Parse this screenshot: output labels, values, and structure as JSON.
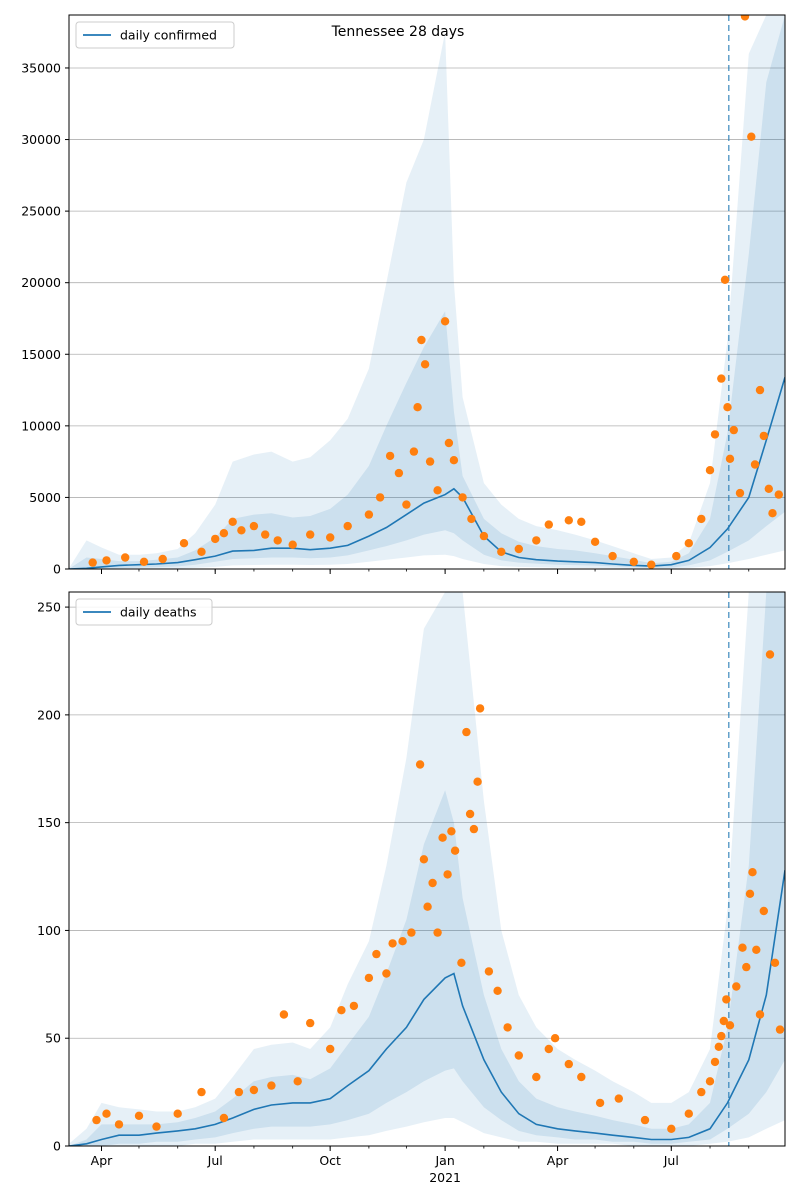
{
  "figure_title": "Tennessee 28 days",
  "colors": {
    "line": "#1f77b4",
    "points": "#ff7f0e",
    "band": "#1f77b4",
    "grid": "#b0b0b0"
  },
  "chart_data": [
    {
      "id": "confirmed",
      "type": "line",
      "legend": "daily confirmed",
      "legend_position": "top-left",
      "grid": "horizontal",
      "ylim": [
        0,
        38700
      ],
      "y_ticks": [
        0,
        5000,
        10000,
        15000,
        20000,
        25000,
        30000,
        35000
      ],
      "x_range": [
        "2020-03-06",
        "2021-09-30"
      ],
      "x_tick_labels": [],
      "forecast_start": "2021-08-16",
      "series": [
        {
          "name": "daily confirmed",
          "x": [
            "2020-03-06",
            "2020-03-20",
            "2020-04-01",
            "2020-04-15",
            "2020-05-01",
            "2020-05-15",
            "2020-06-01",
            "2020-06-15",
            "2020-07-01",
            "2020-07-15",
            "2020-08-01",
            "2020-08-15",
            "2020-09-01",
            "2020-09-15",
            "2020-10-01",
            "2020-10-15",
            "2020-11-01",
            "2020-11-15",
            "2020-12-01",
            "2020-12-15",
            "2021-01-01",
            "2021-01-08",
            "2021-01-15",
            "2021-02-01",
            "2021-02-15",
            "2021-03-01",
            "2021-03-15",
            "2021-04-01",
            "2021-04-15",
            "2021-05-01",
            "2021-05-15",
            "2021-06-01",
            "2021-06-15",
            "2021-07-01",
            "2021-07-15",
            "2021-08-01",
            "2021-08-15",
            "2021-09-01",
            "2021-09-15",
            "2021-09-30"
          ],
          "y": [
            0,
            50,
            150,
            250,
            300,
            350,
            450,
            650,
            900,
            1250,
            1300,
            1450,
            1450,
            1350,
            1450,
            1650,
            2300,
            2900,
            3800,
            4600,
            5200,
            5600,
            5000,
            2300,
            1200,
            800,
            650,
            550,
            500,
            450,
            350,
            250,
            200,
            300,
            600,
            1500,
            2800,
            5000,
            9000,
            13400
          ]
        }
      ],
      "band_upper_outer": [
        50,
        2000,
        1500,
        1000,
        1000,
        1100,
        1400,
        2500,
        4500,
        7500,
        8000,
        8200,
        7500,
        7800,
        9000,
        10500,
        14000,
        20000,
        27000,
        30000,
        37500,
        20000,
        12000,
        6000,
        4500,
        3500,
        3000,
        2700,
        2400,
        2000,
        1600,
        1100,
        700,
        800,
        1800,
        6000,
        16000,
        36000,
        38700,
        38700
      ],
      "band_upper_mid": [
        20,
        800,
        700,
        550,
        550,
        650,
        800,
        1300,
        2200,
        3500,
        3800,
        3900,
        3600,
        3700,
        4200,
        5200,
        7200,
        10000,
        13000,
        15500,
        18000,
        11000,
        6500,
        3500,
        2500,
        1900,
        1600,
        1400,
        1300,
        1100,
        900,
        650,
        400,
        500,
        1100,
        3500,
        9500,
        22000,
        34000,
        38700
      ],
      "band_lower_mid": [
        0,
        0,
        0,
        50,
        100,
        120,
        180,
        300,
        500,
        700,
        750,
        800,
        800,
        750,
        800,
        950,
        1300,
        1600,
        2000,
        2400,
        2700,
        2500,
        2000,
        1000,
        600,
        450,
        380,
        300,
        270,
        240,
        180,
        120,
        80,
        100,
        250,
        600,
        1200,
        2000,
        3000,
        4000
      ],
      "band_lower_outer": [
        0,
        0,
        0,
        0,
        0,
        0,
        30,
        80,
        150,
        250,
        280,
        300,
        300,
        280,
        300,
        350,
        500,
        650,
        800,
        950,
        1000,
        900,
        700,
        350,
        200,
        150,
        120,
        100,
        80,
        70,
        50,
        30,
        20,
        30,
        80,
        200,
        400,
        700,
        1000,
        1300
      ],
      "observations": [
        {
          "x": "2020-03-25",
          "y": 450
        },
        {
          "x": "2020-04-05",
          "y": 600
        },
        {
          "x": "2020-04-20",
          "y": 800
        },
        {
          "x": "2020-05-05",
          "y": 500
        },
        {
          "x": "2020-05-20",
          "y": 700
        },
        {
          "x": "2020-06-06",
          "y": 1800
        },
        {
          "x": "2020-06-20",
          "y": 1200
        },
        {
          "x": "2020-07-01",
          "y": 2100
        },
        {
          "x": "2020-07-08",
          "y": 2500
        },
        {
          "x": "2020-07-15",
          "y": 3300
        },
        {
          "x": "2020-07-22",
          "y": 2700
        },
        {
          "x": "2020-08-01",
          "y": 3000
        },
        {
          "x": "2020-08-10",
          "y": 2400
        },
        {
          "x": "2020-08-20",
          "y": 2000
        },
        {
          "x": "2020-09-01",
          "y": 1700
        },
        {
          "x": "2020-09-15",
          "y": 2400
        },
        {
          "x": "2020-10-01",
          "y": 2200
        },
        {
          "x": "2020-10-15",
          "y": 3000
        },
        {
          "x": "2020-11-01",
          "y": 3800
        },
        {
          "x": "2020-11-10",
          "y": 5000
        },
        {
          "x": "2020-11-18",
          "y": 7900
        },
        {
          "x": "2020-11-25",
          "y": 6700
        },
        {
          "x": "2020-12-01",
          "y": 4500
        },
        {
          "x": "2020-12-07",
          "y": 8200
        },
        {
          "x": "2020-12-10",
          "y": 11300
        },
        {
          "x": "2020-12-13",
          "y": 16000
        },
        {
          "x": "2020-12-16",
          "y": 14300
        },
        {
          "x": "2020-12-20",
          "y": 7500
        },
        {
          "x": "2020-12-26",
          "y": 5500
        },
        {
          "x": "2021-01-01",
          "y": 17300
        },
        {
          "x": "2021-01-04",
          "y": 8800
        },
        {
          "x": "2021-01-08",
          "y": 7600
        },
        {
          "x": "2021-01-15",
          "y": 5000
        },
        {
          "x": "2021-01-22",
          "y": 3500
        },
        {
          "x": "2021-02-01",
          "y": 2300
        },
        {
          "x": "2021-02-15",
          "y": 1200
        },
        {
          "x": "2021-03-01",
          "y": 1400
        },
        {
          "x": "2021-03-15",
          "y": 2000
        },
        {
          "x": "2021-03-25",
          "y": 3100
        },
        {
          "x": "2021-04-10",
          "y": 3400
        },
        {
          "x": "2021-04-20",
          "y": 3300
        },
        {
          "x": "2021-05-01",
          "y": 1900
        },
        {
          "x": "2021-05-15",
          "y": 900
        },
        {
          "x": "2021-06-01",
          "y": 500
        },
        {
          "x": "2021-06-15",
          "y": 300
        },
        {
          "x": "2021-07-05",
          "y": 900
        },
        {
          "x": "2021-07-15",
          "y": 1800
        },
        {
          "x": "2021-07-25",
          "y": 3500
        },
        {
          "x": "2021-08-01",
          "y": 6900
        },
        {
          "x": "2021-08-05",
          "y": 9400
        },
        {
          "x": "2021-08-10",
          "y": 13300
        },
        {
          "x": "2021-08-13",
          "y": 20200
        },
        {
          "x": "2021-08-15",
          "y": 11300
        },
        {
          "x": "2021-08-17",
          "y": 7700
        },
        {
          "x": "2021-08-20",
          "y": 9700
        },
        {
          "x": "2021-08-25",
          "y": 5300
        },
        {
          "x": "2021-08-29",
          "y": 38600
        },
        {
          "x": "2021-09-03",
          "y": 30200
        },
        {
          "x": "2021-09-06",
          "y": 7300
        },
        {
          "x": "2021-09-10",
          "y": 12500
        },
        {
          "x": "2021-09-13",
          "y": 9300
        },
        {
          "x": "2021-09-17",
          "y": 5600
        },
        {
          "x": "2021-09-20",
          "y": 3900
        },
        {
          "x": "2021-09-25",
          "y": 5200
        }
      ]
    },
    {
      "id": "deaths",
      "type": "line",
      "legend": "daily deaths",
      "legend_position": "top-left",
      "grid": "horizontal",
      "ylim": [
        0,
        257
      ],
      "y_ticks": [
        0,
        50,
        100,
        150,
        200,
        250
      ],
      "x_range": [
        "2020-03-06",
        "2021-09-30"
      ],
      "x_tick_labels": [
        {
          "x": "2020-04-01",
          "label": "Apr"
        },
        {
          "x": "2020-07-01",
          "label": "Jul"
        },
        {
          "x": "2020-10-01",
          "label": "Oct"
        },
        {
          "x": "2021-01-01",
          "label": "Jan",
          "sublabel": "2021"
        },
        {
          "x": "2021-04-01",
          "label": "Apr"
        },
        {
          "x": "2021-07-01",
          "label": "Jul"
        }
      ],
      "forecast_start": "2021-08-16",
      "series": [
        {
          "name": "daily deaths",
          "x": [
            "2020-03-06",
            "2020-03-20",
            "2020-04-01",
            "2020-04-15",
            "2020-05-01",
            "2020-05-15",
            "2020-06-01",
            "2020-06-15",
            "2020-07-01",
            "2020-07-15",
            "2020-08-01",
            "2020-08-15",
            "2020-09-01",
            "2020-09-15",
            "2020-10-01",
            "2020-10-15",
            "2020-11-01",
            "2020-11-15",
            "2020-12-01",
            "2020-12-15",
            "2021-01-01",
            "2021-01-08",
            "2021-01-15",
            "2021-02-01",
            "2021-02-15",
            "2021-03-01",
            "2021-03-15",
            "2021-04-01",
            "2021-04-15",
            "2021-05-01",
            "2021-05-15",
            "2021-06-01",
            "2021-06-15",
            "2021-07-01",
            "2021-07-15",
            "2021-08-01",
            "2021-08-15",
            "2021-09-01",
            "2021-09-15",
            "2021-09-30"
          ],
          "y": [
            0,
            1,
            3,
            5,
            5,
            6,
            7,
            8,
            10,
            13,
            17,
            19,
            20,
            20,
            22,
            28,
            35,
            45,
            55,
            68,
            78,
            80,
            65,
            40,
            25,
            15,
            10,
            8,
            7,
            6,
            5,
            4,
            3,
            3,
            4,
            8,
            20,
            40,
            70,
            128
          ]
        }
      ],
      "band_upper_outer": [
        1,
        8,
        20,
        18,
        17,
        16,
        16,
        18,
        22,
        32,
        45,
        47,
        48,
        45,
        55,
        75,
        95,
        130,
        180,
        240,
        257,
        257,
        257,
        160,
        100,
        70,
        55,
        45,
        40,
        35,
        30,
        25,
        20,
        20,
        25,
        45,
        110,
        257,
        257,
        257
      ],
      "band_upper_mid": [
        0,
        3,
        10,
        10,
        10,
        10,
        11,
        13,
        16,
        22,
        30,
        32,
        33,
        31,
        36,
        47,
        60,
        80,
        105,
        140,
        165,
        150,
        115,
        70,
        45,
        30,
        22,
        18,
        16,
        14,
        12,
        10,
        8,
        8,
        10,
        20,
        55,
        130,
        257,
        257
      ],
      "band_lower_mid": [
        0,
        0,
        0,
        1,
        1,
        2,
        2,
        3,
        4,
        6,
        8,
        9,
        9,
        9,
        10,
        12,
        15,
        20,
        25,
        30,
        35,
        36,
        30,
        18,
        12,
        7,
        5,
        4,
        3,
        3,
        2,
        2,
        1,
        1,
        2,
        3,
        8,
        15,
        25,
        40
      ],
      "band_lower_outer": [
        0,
        0,
        0,
        0,
        0,
        0,
        0,
        1,
        1,
        2,
        3,
        3,
        3,
        3,
        3,
        4,
        5,
        7,
        9,
        11,
        13,
        13,
        11,
        6,
        4,
        2,
        2,
        1,
        1,
        1,
        1,
        0,
        0,
        0,
        0,
        1,
        2,
        4,
        8,
        12
      ],
      "observations": [
        {
          "x": "2020-03-28",
          "y": 12
        },
        {
          "x": "2020-04-05",
          "y": 15
        },
        {
          "x": "2020-04-15",
          "y": 10
        },
        {
          "x": "2020-05-01",
          "y": 14
        },
        {
          "x": "2020-05-15",
          "y": 9
        },
        {
          "x": "2020-06-01",
          "y": 15
        },
        {
          "x": "2020-06-20",
          "y": 25
        },
        {
          "x": "2020-07-08",
          "y": 13
        },
        {
          "x": "2020-07-20",
          "y": 25
        },
        {
          "x": "2020-08-01",
          "y": 26
        },
        {
          "x": "2020-08-15",
          "y": 28
        },
        {
          "x": "2020-08-25",
          "y": 61
        },
        {
          "x": "2020-09-05",
          "y": 30
        },
        {
          "x": "2020-09-15",
          "y": 57
        },
        {
          "x": "2020-10-01",
          "y": 45
        },
        {
          "x": "2020-10-10",
          "y": 63
        },
        {
          "x": "2020-10-20",
          "y": 65
        },
        {
          "x": "2020-11-01",
          "y": 78
        },
        {
          "x": "2020-11-07",
          "y": 89
        },
        {
          "x": "2020-11-15",
          "y": 80
        },
        {
          "x": "2020-11-20",
          "y": 94
        },
        {
          "x": "2020-11-28",
          "y": 95
        },
        {
          "x": "2020-12-05",
          "y": 99
        },
        {
          "x": "2020-12-12",
          "y": 177
        },
        {
          "x": "2020-12-15",
          "y": 133
        },
        {
          "x": "2020-12-18",
          "y": 111
        },
        {
          "x": "2020-12-22",
          "y": 122
        },
        {
          "x": "2020-12-26",
          "y": 99
        },
        {
          "x": "2020-12-30",
          "y": 143
        },
        {
          "x": "2021-01-03",
          "y": 126
        },
        {
          "x": "2021-01-06",
          "y": 146
        },
        {
          "x": "2021-01-09",
          "y": 137
        },
        {
          "x": "2021-01-14",
          "y": 85
        },
        {
          "x": "2021-01-18",
          "y": 192
        },
        {
          "x": "2021-01-21",
          "y": 154
        },
        {
          "x": "2021-01-24",
          "y": 147
        },
        {
          "x": "2021-01-27",
          "y": 169
        },
        {
          "x": "2021-01-29",
          "y": 203
        },
        {
          "x": "2021-02-05",
          "y": 81
        },
        {
          "x": "2021-02-12",
          "y": 72
        },
        {
          "x": "2021-02-20",
          "y": 55
        },
        {
          "x": "2021-03-01",
          "y": 42
        },
        {
          "x": "2021-03-15",
          "y": 32
        },
        {
          "x": "2021-03-25",
          "y": 45
        },
        {
          "x": "2021-03-30",
          "y": 50
        },
        {
          "x": "2021-04-10",
          "y": 38
        },
        {
          "x": "2021-04-20",
          "y": 32
        },
        {
          "x": "2021-05-05",
          "y": 20
        },
        {
          "x": "2021-05-20",
          "y": 22
        },
        {
          "x": "2021-06-10",
          "y": 12
        },
        {
          "x": "2021-07-01",
          "y": 8
        },
        {
          "x": "2021-07-15",
          "y": 15
        },
        {
          "x": "2021-07-25",
          "y": 25
        },
        {
          "x": "2021-08-01",
          "y": 30
        },
        {
          "x": "2021-08-05",
          "y": 39
        },
        {
          "x": "2021-08-08",
          "y": 46
        },
        {
          "x": "2021-08-10",
          "y": 51
        },
        {
          "x": "2021-08-12",
          "y": 58
        },
        {
          "x": "2021-08-14",
          "y": 68
        },
        {
          "x": "2021-08-17",
          "y": 56
        },
        {
          "x": "2021-08-22",
          "y": 74
        },
        {
          "x": "2021-08-27",
          "y": 92
        },
        {
          "x": "2021-08-30",
          "y": 83
        },
        {
          "x": "2021-09-02",
          "y": 117
        },
        {
          "x": "2021-09-04",
          "y": 127
        },
        {
          "x": "2021-09-07",
          "y": 91
        },
        {
          "x": "2021-09-10",
          "y": 61
        },
        {
          "x": "2021-09-13",
          "y": 109
        },
        {
          "x": "2021-09-18",
          "y": 228
        },
        {
          "x": "2021-09-22",
          "y": 85
        },
        {
          "x": "2021-09-26",
          "y": 54
        }
      ]
    }
  ]
}
